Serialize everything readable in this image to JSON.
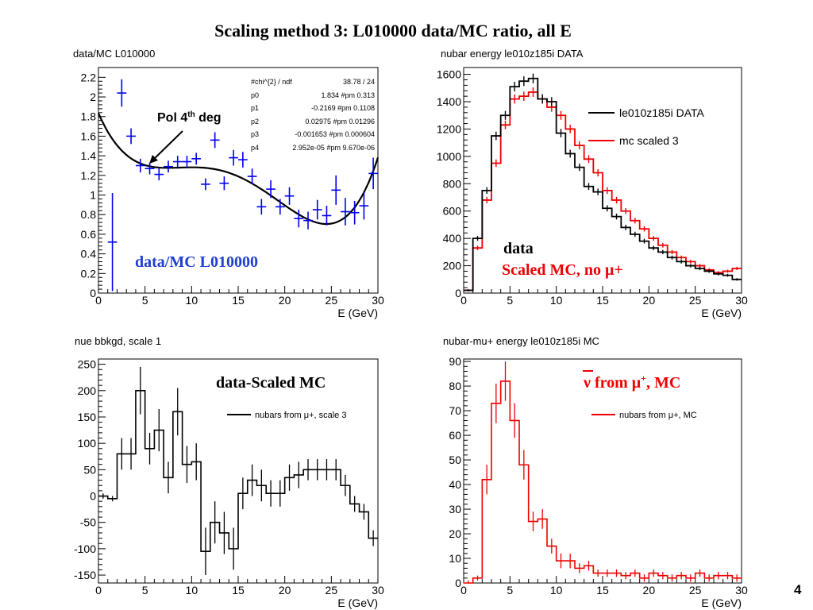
{
  "slide": {
    "title": "Scaling method 3: L010000 data/MC ratio, all E",
    "page_number": "4"
  },
  "chart_data": [
    {
      "id": "p1",
      "type": "scatter",
      "title": "data/MC L010000",
      "xlabel": "E (GeV)",
      "xlim": [
        0,
        30
      ],
      "ylim": [
        0,
        2.3
      ],
      "xticks": [
        0,
        5,
        10,
        15,
        20,
        25,
        30
      ],
      "yticks": [
        0,
        0.2,
        0.4,
        0.6,
        0.8,
        1,
        1.2,
        1.4,
        1.6,
        1.8,
        2,
        2.2
      ],
      "ytick_labels": [
        "0",
        "0.2",
        "0.4",
        "0.6",
        "0.8",
        "1",
        "1.2",
        "1.4",
        "1.6",
        "1.8",
        "2",
        "2.2"
      ],
      "color": "#0000ee",
      "points": [
        [
          1.5,
          0.52,
          0.5
        ],
        [
          2.5,
          2.04,
          0.14
        ],
        [
          3.5,
          1.6,
          0.08
        ],
        [
          4.5,
          1.3,
          0.07
        ],
        [
          5.5,
          1.27,
          0.06
        ],
        [
          6.5,
          1.21,
          0.06
        ],
        [
          7.5,
          1.29,
          0.06
        ],
        [
          8.5,
          1.34,
          0.06
        ],
        [
          9.5,
          1.34,
          0.06
        ],
        [
          10.5,
          1.37,
          0.06
        ],
        [
          11.5,
          1.11,
          0.06
        ],
        [
          12.5,
          1.56,
          0.08
        ],
        [
          13.5,
          1.12,
          0.07
        ],
        [
          14.5,
          1.38,
          0.08
        ],
        [
          15.5,
          1.36,
          0.08
        ],
        [
          16.5,
          1.19,
          0.08
        ],
        [
          17.5,
          0.88,
          0.08
        ],
        [
          18.5,
          1.06,
          0.09
        ],
        [
          19.5,
          0.88,
          0.08
        ],
        [
          20.5,
          0.99,
          0.09
        ],
        [
          21.5,
          0.76,
          0.09
        ],
        [
          22.5,
          0.74,
          0.09
        ],
        [
          23.5,
          0.85,
          0.1
        ],
        [
          24.5,
          0.79,
          0.1
        ],
        [
          25.5,
          1.05,
          0.15
        ],
        [
          26.5,
          0.83,
          0.14
        ],
        [
          27.5,
          0.82,
          0.12
        ],
        [
          28.5,
          0.89,
          0.14
        ],
        [
          29.5,
          1.22,
          0.16
        ]
      ],
      "fit": {
        "p0": 1.834,
        "p1": -0.2169,
        "p2": 0.02975,
        "p3": -0.001653,
        "p4": 2.952e-05
      },
      "fit_box": {
        "rows": [
          {
            "name": "#chi^{2} / ndf",
            "value": "38.78 / 24"
          },
          {
            "name": "p0",
            "value": "1.834 #pm 0.313"
          },
          {
            "name": "p1",
            "value": "-0.2169 #pm 0.1108"
          },
          {
            "name": "p2",
            "value": "0.02975 #pm 0.01296"
          },
          {
            "name": "p3",
            "value": "-0.001653 #pm 0.000604"
          },
          {
            "name": "p4",
            "value": "2.952e-05 #pm 9.670e-06"
          }
        ]
      },
      "annotation_pol": {
        "main": "Pol 4",
        "sup": "th",
        "rest": " deg"
      },
      "annotation_label": "data/MC L010000"
    },
    {
      "id": "p2",
      "type": "line",
      "title": "nubar energy le010z185i DATA",
      "xlabel": "E (GeV)",
      "xlim": [
        0,
        30
      ],
      "ylim": [
        0,
        1650
      ],
      "xticks": [
        0,
        5,
        10,
        15,
        20,
        25,
        30
      ],
      "yticks": [
        0,
        200,
        400,
        600,
        800,
        1000,
        1200,
        1400,
        1600
      ],
      "ytick_labels": [
        "0",
        "200",
        "400",
        "600",
        "800",
        "1000",
        "1200",
        "1400",
        "1600"
      ],
      "legend": [
        "le010z185i DATA",
        "mc scaled 3"
      ],
      "series": [
        {
          "name": "le010z185i DATA",
          "color": "#000000",
          "values": [
            20,
            400,
            750,
            1150,
            1300,
            1510,
            1550,
            1570,
            1420,
            1400,
            1170,
            1020,
            920,
            780,
            740,
            620,
            560,
            480,
            430,
            380,
            330,
            300,
            260,
            230,
            200,
            180,
            160,
            140,
            130,
            100
          ]
        },
        {
          "name": "mc scaled 3",
          "color": "#ee0000",
          "values": [
            20,
            330,
            680,
            950,
            1230,
            1420,
            1440,
            1470,
            1420,
            1360,
            1300,
            1200,
            1080,
            980,
            880,
            750,
            680,
            600,
            530,
            470,
            400,
            350,
            300,
            260,
            230,
            200,
            170,
            150,
            160,
            180
          ]
        }
      ],
      "annotation_data": "data",
      "annotation_mc": "Scaled MC, no μ+"
    },
    {
      "id": "p3",
      "type": "line",
      "title": "nue bbkgd, scale 1",
      "xlabel": "E (GeV)",
      "xlim": [
        0,
        30
      ],
      "ylim": [
        -165,
        260
      ],
      "xticks": [
        0,
        5,
        10,
        15,
        20,
        25,
        30
      ],
      "yticks": [
        -150,
        -100,
        -50,
        0,
        50,
        100,
        150,
        200,
        250
      ],
      "ytick_labels": [
        "-150",
        "-100",
        "-50",
        "0",
        "50",
        "100",
        "150",
        "200",
        "250"
      ],
      "legend": [
        "nubars from μ+, scale 3"
      ],
      "series": [
        {
          "name": "nubars from μ+, scale 3",
          "color": "#000000",
          "values": [
            0,
            -5,
            80,
            80,
            200,
            90,
            125,
            35,
            160,
            60,
            65,
            -105,
            -50,
            -70,
            -100,
            5,
            30,
            20,
            5,
            5,
            35,
            40,
            50,
            50,
            50,
            50,
            20,
            -15,
            -30,
            -80
          ],
          "errors": [
            5,
            5,
            30,
            30,
            45,
            30,
            40,
            30,
            45,
            35,
            35,
            45,
            40,
            40,
            40,
            30,
            30,
            30,
            25,
            25,
            25,
            25,
            20,
            20,
            20,
            20,
            20,
            15,
            15,
            15
          ]
        }
      ],
      "annotation_label": "data-Scaled MC"
    },
    {
      "id": "p4",
      "type": "line",
      "title": "nubar-mu+ energy le010z185i MC",
      "xlabel": "E (GeV)",
      "xlim": [
        0,
        30
      ],
      "ylim": [
        0,
        91
      ],
      "xticks": [
        0,
        5,
        10,
        15,
        20,
        25,
        30
      ],
      "yticks": [
        0,
        10,
        20,
        30,
        40,
        50,
        60,
        70,
        80,
        90
      ],
      "ytick_labels": [
        "0",
        "10",
        "20",
        "30",
        "40",
        "50",
        "60",
        "70",
        "80",
        "90"
      ],
      "legend": [
        "nubars from μ+, MC"
      ],
      "series": [
        {
          "name": "nubars from μ+, MC",
          "color": "#ee0000",
          "values": [
            0,
            2,
            42,
            73,
            82,
            66,
            48,
            25,
            26,
            15,
            9,
            9,
            6,
            7,
            4,
            4,
            4,
            3,
            4,
            2,
            4,
            3,
            2,
            3,
            2,
            4,
            2,
            3,
            3,
            2
          ],
          "errors": [
            1,
            1,
            6,
            8,
            8,
            7,
            6,
            4,
            4,
            3,
            3,
            3,
            2,
            2,
            1.5,
            1.5,
            1.5,
            1.5,
            1.5,
            1.5,
            1.5,
            1.5,
            1.5,
            1.5,
            1.5,
            1.5,
            1.5,
            1.5,
            1.5,
            1.5
          ]
        }
      ],
      "annotation_nu": "ν",
      "annotation_rest": " from μ",
      "annotation_sup": "+",
      "annotation_tail": ", MC"
    }
  ]
}
